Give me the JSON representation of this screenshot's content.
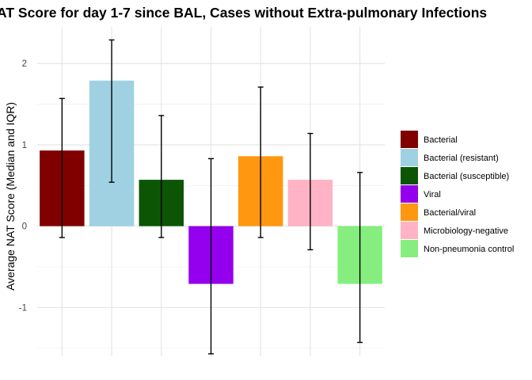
{
  "chart_data": {
    "type": "bar",
    "title": "AT Score for day 1-7 since BAL, Cases without Extra-pulmonary Infections",
    "ylabel": "Average NAT Score (Median and IQR)",
    "xlabel": "",
    "ylim": [
      -1.6,
      2.45
    ],
    "y_ticks": [
      {
        "value": -1,
        "label": "-1"
      },
      {
        "value": 0,
        "label": "0"
      },
      {
        "value": 1,
        "label": "1"
      },
      {
        "value": 2,
        "label": "2"
      }
    ],
    "grid": true,
    "legend_position": "right",
    "categories": [
      "Bacterial",
      "Bacterial (resistant)",
      "Bacterial (susceptible)",
      "Viral",
      "Bacterial/viral",
      "Microbiology-negative",
      "Non-pneumonia control"
    ],
    "values": [
      0.93,
      1.79,
      0.57,
      -0.71,
      0.86,
      0.57,
      -0.71
    ],
    "error_low": [
      -0.14,
      0.54,
      -0.14,
      -1.57,
      -0.14,
      -0.29,
      -1.43
    ],
    "error_high": [
      1.57,
      2.29,
      1.36,
      0.83,
      1.71,
      1.14,
      0.66
    ],
    "colors": [
      "#800000",
      "#9FD1E2",
      "#0B5505",
      "#9400EE",
      "#FF9710",
      "#FFB3C5",
      "#86EE7F"
    ]
  }
}
